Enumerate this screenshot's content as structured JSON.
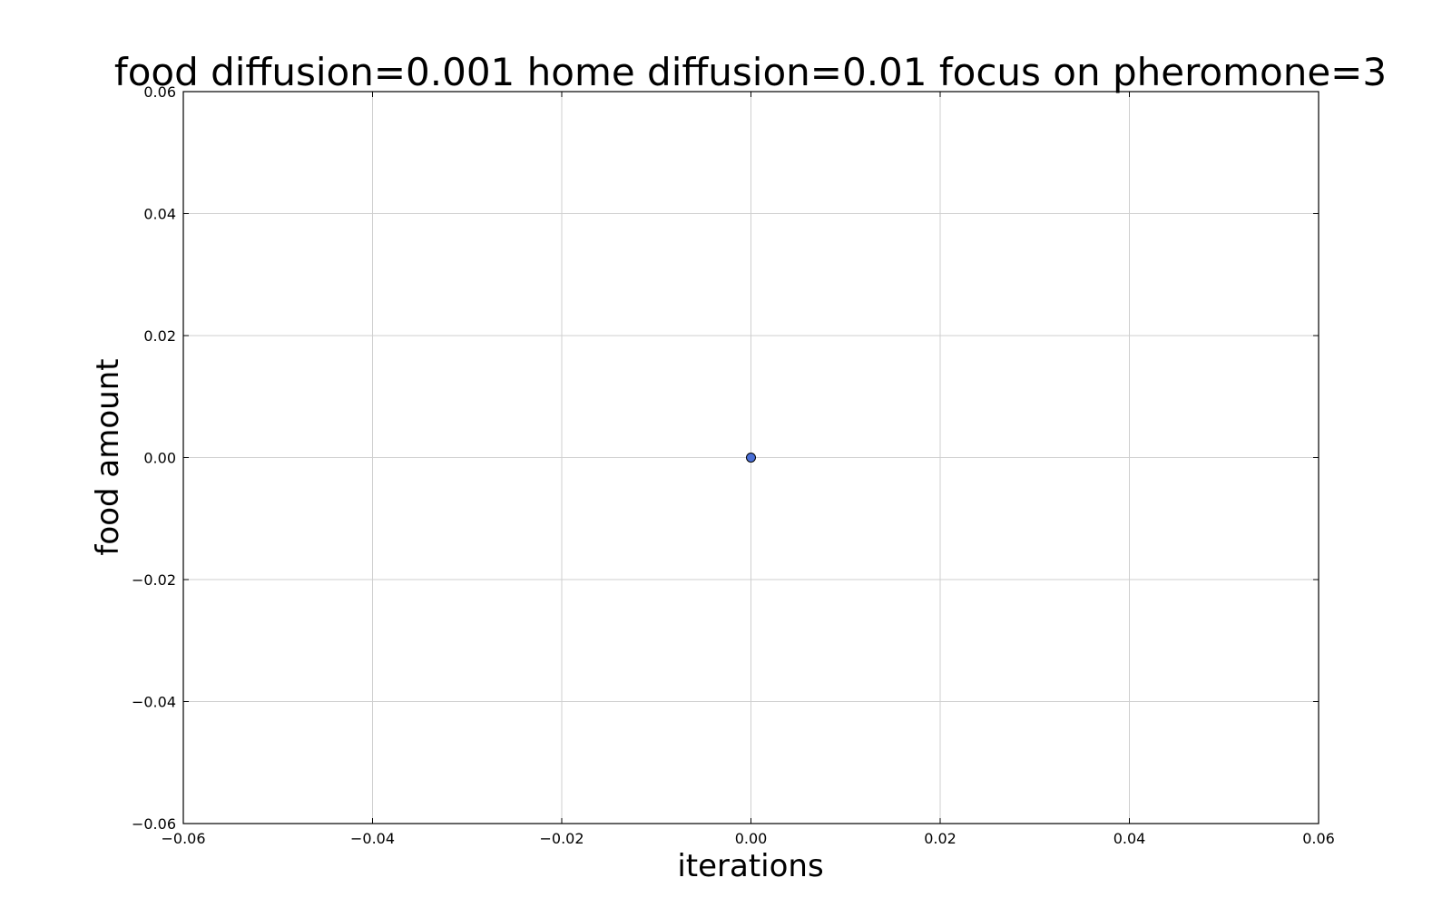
{
  "chart_data": {
    "type": "scatter",
    "title": "food diffusion=0.001 home diffusion=0.01 focus on pheromone=3",
    "xlabel": "iterations",
    "ylabel": "food amount",
    "xlim": [
      -0.06,
      0.06
    ],
    "ylim": [
      -0.06,
      0.06
    ],
    "xticks": [
      -0.06,
      -0.04,
      -0.02,
      0.0,
      0.02,
      0.04,
      0.06
    ],
    "yticks": [
      -0.06,
      -0.04,
      -0.02,
      0.0,
      0.02,
      0.04,
      0.06
    ],
    "xtick_labels": [
      "−0.06",
      "−0.04",
      "−0.02",
      "0.00",
      "0.02",
      "0.04",
      "0.06"
    ],
    "ytick_labels": [
      "−0.06",
      "−0.04",
      "−0.02",
      "0.00",
      "0.02",
      "0.04",
      "0.06"
    ],
    "grid": true,
    "series": [
      {
        "x": [
          0.0
        ],
        "y": [
          0.0
        ],
        "color": "#4a6fd6"
      }
    ]
  }
}
